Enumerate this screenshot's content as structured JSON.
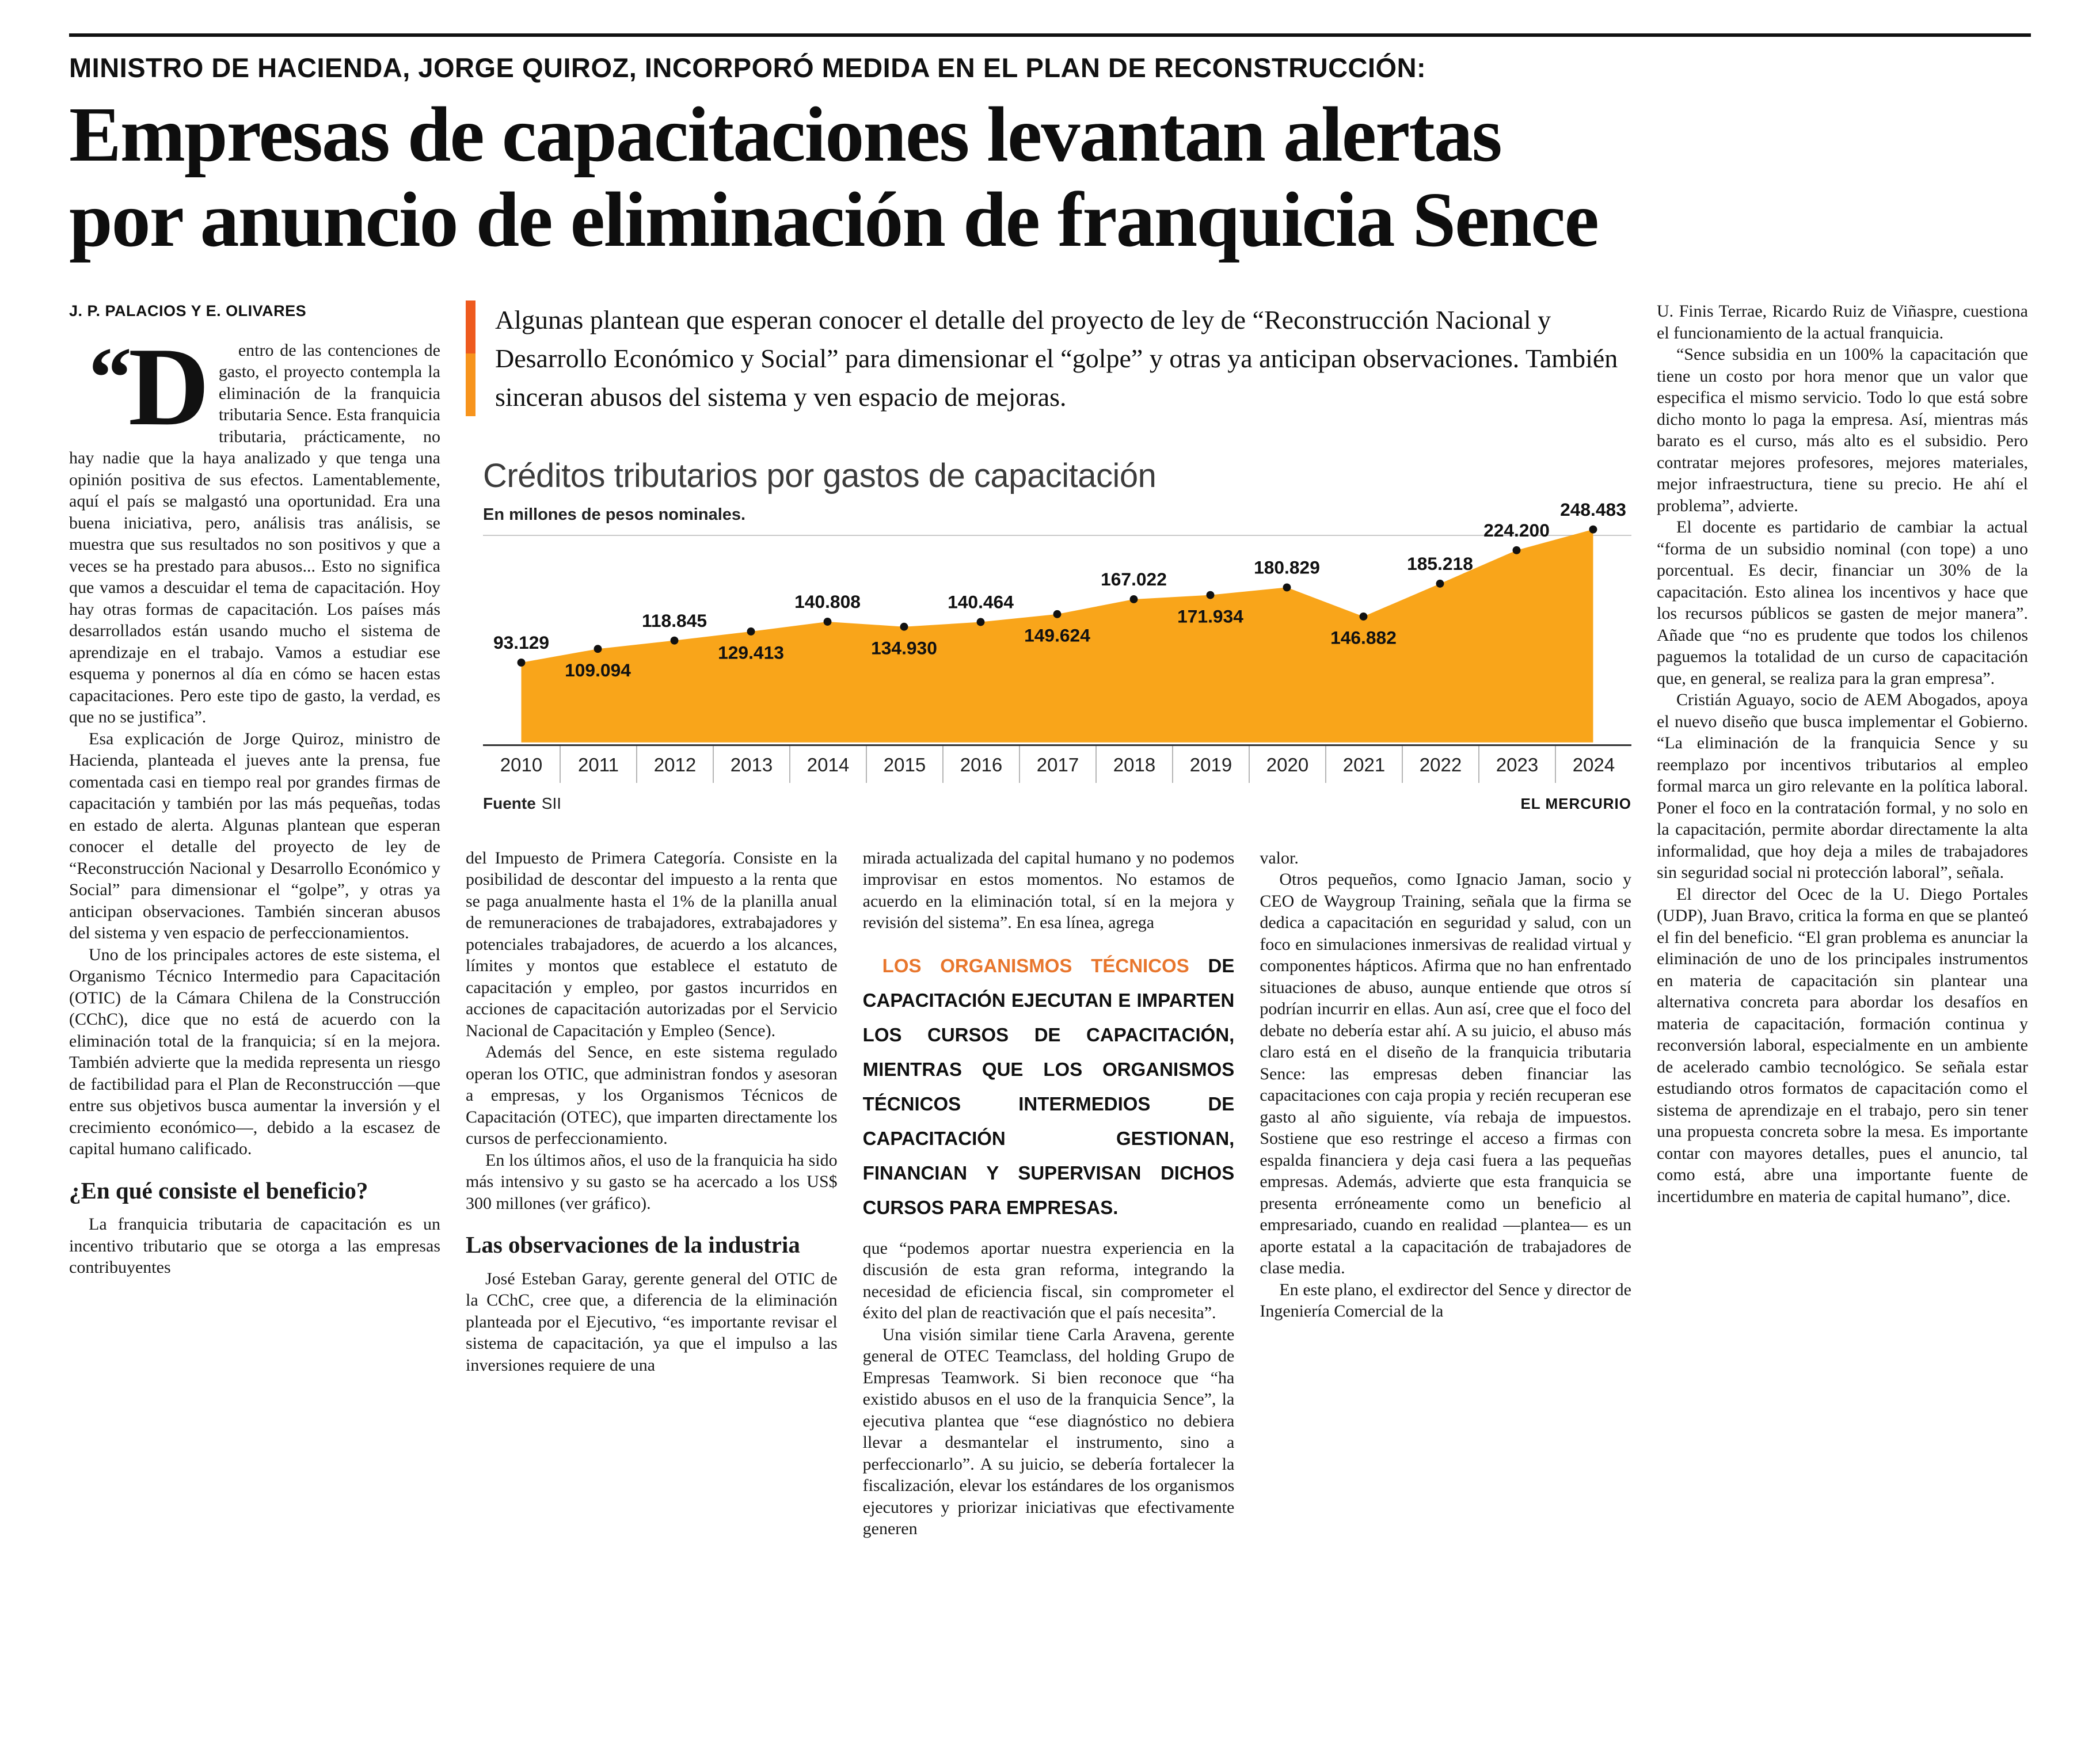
{
  "page": {
    "kicker": "MINISTRO DE HACIENDA, JORGE QUIROZ, INCORPORÓ MEDIDA EN EL PLAN DE RECONSTRUCCIÓN:",
    "headline_line1": "Empresas de capacitaciones levantan alertas",
    "headline_line2": "por anuncio de eliminación de franquicia Sence",
    "byline": "J. P. PALACIOS Y E. OLIVARES",
    "standfirst": "Algunas plantean que esperan conocer el detalle del proyecto de ley de “Reconstrucción Nacional y Desarrollo Económico y Social” para dimensionar el “golpe” y otras ya anticipan observaciones. También sinceran abusos del sistema y ven espacio de mejoras."
  },
  "colors": {
    "accent_orange": "#f7941d",
    "accent_orange_dark": "#ee5a1e",
    "pullquote_orange": "#e8762d",
    "chart_fill": "#f9a51a",
    "text": "#1a1a1a"
  },
  "article": {
    "col1": {
      "open_quote": "“",
      "dropcap": "D",
      "lead_text": "entro de las contenciones de gasto, el proyecto contempla la eliminación de la franquicia tributaria Sence. Esta franquicia tributaria, prácticamente, no hay nadie que la haya analizado y que tenga una opinión positiva de sus efectos. Lamentablemente, aquí el país se malgastó una oportunidad. Era una buena iniciativa, pero, análisis tras análisis, se muestra que sus resultados no son positivos y que a veces se ha prestado para abusos... Esto no significa que vamos a descuidar el tema de capacitación. Hoy hay otras formas de capacitación. Los países más desarrollados están usando mucho el sistema de aprendizaje en el trabajo. Vamos a estudiar ese esquema y ponernos al día en cómo se hacen estas capacitaciones. Pero este tipo de gasto, la verdad, es que no se justifica”.",
      "paragraphs": [
        "Esa explicación de Jorge Quiroz, ministro de Hacienda, planteada el jueves ante la prensa, fue comentada casi en tiempo real por grandes firmas de capacitación y también por las más pequeñas, todas en estado de alerta. Algunas plantean que esperan conocer el detalle del proyecto de ley de “Reconstrucción Nacional y Desarrollo Económico y Social” para dimensionar el “golpe”, y otras ya anticipan observaciones. También sinceran abusos del sistema y ven espacio de perfeccionamientos.",
        "Uno de los principales actores de este sistema, el Organismo Técnico Intermedio para Capacitación (OTIC) de la Cámara Chilena de la Construcción (CChC), dice que no está de acuerdo con la eliminación total de la franquicia; sí en la mejora. También advierte que la medida representa un riesgo de factibilidad para el Plan de Reconstrucción —que entre sus objetivos busca aumentar la inversión y el crecimiento económico—, debido a la escasez de capital humano calificado.",
        "La franquicia tributaria de capacitación es un incentivo tributario que se otorga a las empresas contribuyentes"
      ],
      "subhead": "¿En qué consiste el beneficio?"
    },
    "col2": {
      "paragraphs": [
        "del Impuesto de Primera Categoría. Consiste en la posibilidad de descontar del impuesto a la renta que se paga anualmente hasta el 1% de la planilla anual de remuneraciones de trabajadores, extrabajadores y potenciales trabajadores, de acuerdo a los alcances, límites y montos que establece el estatuto de capacitación y empleo, por gastos incurridos en acciones de capacitación autorizadas por el Servicio Nacional de Capacitación y Empleo (Sence).",
        "Además del Sence, en este sistema regulado operan los OTIC, que administran fondos y asesoran a empresas, y los Organismos Técnicos de Capacitación (OTEC), que imparten directamente los cursos de perfeccionamiento.",
        "En los últimos años, el uso de la franquicia ha sido más intensivo y su gasto se ha acercado a los US$ 300 millones (ver gráfico).",
        "José Esteban Garay, gerente general del OTIC de la CChC, cree que, a diferencia de la eliminación planteada por el Ejecutivo, “es importante revisar el sistema de capacitación, ya que el impulso a las inversiones requiere de una"
      ],
      "subhead": "Las observaciones de la industria"
    },
    "col3": {
      "paragraphs": [
        "mirada actualizada del capital humano y no podemos improvisar en estos momentos. No estamos de acuerdo en la eliminación total, sí en la mejora y revisión del sistema”. En esa línea, agrega",
        "que “podemos aportar nuestra experiencia en la discusión de esta gran reforma, integrando la necesidad de eficiencia fiscal, sin comprometer el éxito del plan de reactivación que el país necesita”.",
        "Una visión similar tiene Carla Aravena, gerente general de OTEC Teamclass, del holding Grupo de Empresas Teamwork. Si bien reconoce que “ha existido abusos en el uso de la franquicia Sence”, la ejecutiva plantea que “ese diagnóstico no debiera llevar a desmantelar el instrumento, sino a perfeccionarlo”. A su juicio, se debería fortalecer la fiscalización, elevar los estándares de los organismos ejecutores y priorizar iniciativas que efectivamente generen"
      ]
    },
    "col4": {
      "paragraphs": [
        "valor.",
        "Otros pequeños, como Ignacio Jaman, socio y CEO de Waygroup Training, señala que la firma se dedica a capacitación en seguridad y salud, con un foco en simulaciones inmersivas de realidad virtual y componentes hápticos. Afirma que no han enfrentado situaciones de abuso, aunque entiende que otros sí podrían incurrir en ellas. Aun así, cree que el foco del debate no debería estar ahí. A su juicio, el abuso más claro está en el diseño de la franquicia tributaria Sence: las empresas deben financiar las capacitaciones con caja propia y recién recuperan ese gasto al año siguiente, vía rebaja de impuestos. Sostiene que eso restringe el acceso a firmas con espalda financiera y deja casi fuera a las pequeñas empresas. Además, advierte que esta franquicia se presenta erróneamente como un beneficio al empresariado, cuando en realidad —plantea— es un aporte estatal a la capacitación de trabajadores de clase media.",
        "En este plano, el exdirector del Sence y director de Ingeniería Comercial de la"
      ]
    },
    "col5": {
      "paragraphs": [
        "U. Finis Terrae, Ricardo Ruiz de Viñaspre, cuestiona el funcionamiento de la actual franquicia.",
        "“Sence subsidia en un 100% la capacitación que tiene un costo por hora menor que un valor que especifica el mismo servicio. Todo lo que está sobre dicho monto lo paga la empresa. Así, mientras más barato es el curso, más alto es el subsidio. Pero contratar mejores profesores, mejores materiales, mejor infraestructura, tiene su precio. He ahí el problema”, advierte.",
        "El docente es partidario de cambiar la actual “forma de un subsidio nominal (con tope) a uno porcentual. Es decir, financiar un 30% de la capacitación. Esto alinea los incentivos y hace que los recursos públicos se gasten de mejor manera”. Añade que “no es prudente que todos los chilenos paguemos la totalidad de un curso de capacitación que, en general, se realiza para la gran empresa”.",
        "Cristián Aguayo, socio de AEM Abogados, apoya el nuevo diseño que busca implementar el Gobierno. “La eliminación de la franquicia Sence y su reemplazo por incentivos tributarios al empleo formal marca un giro relevante en la política laboral. Poner el foco en la contratación formal, y no solo en la capacitación, permite abordar directamente la alta informalidad, que hoy deja a miles de trabajadores sin seguridad social ni protección laboral”, señala.",
        "El director del Ocec de la U. Diego Portales (UDP), Juan Bravo, critica la forma en que se planteó el fin del beneficio. “El gran problema es anunciar la eliminación de uno de los principales instrumentos en materia de capacitación sin plantear una alternativa concreta para abordar los desafíos en materia de capacitación, formación continua y reconversión laboral, especialmente en un ambiente de acelerado cambio tecnológico. Se señala estar estudiando otros formatos de capacitación como el sistema de aprendizaje en el trabajo, pero sin tener una propuesta concreta sobre la mesa. Es importante contar con mayores detalles, pues el anuncio, tal como está, abre una importante fuente de incertidumbre en materia de capital humano”, dice."
      ]
    }
  },
  "pull_quote": {
    "lead": "LOS ORGANISMOS TÉCNICOS",
    "rest": " DE CAPACITACIÓN EJECUTAN E IMPARTEN LOS CURSOS DE CAPACITACIÓN, MIENTRAS QUE LOS ORGANISMOS TÉCNICOS INTERMEDIOS DE CAPACITACIÓN GESTIONAN, FINANCIAN Y SUPERVISAN DICHOS CURSOS PARA EMPRESAS."
  },
  "chart_data": {
    "type": "area",
    "title": "Créditos tributarios por gastos de capacitación",
    "subtitle": "En millones de pesos nominales.",
    "source_label": "Fuente",
    "source_value": "SII",
    "brand": "EL MERCURIO",
    "categories": [
      "2010",
      "2011",
      "2012",
      "2013",
      "2014",
      "2015",
      "2016",
      "2017",
      "2018",
      "2019",
      "2020",
      "2021",
      "2022",
      "2023",
      "2024"
    ],
    "values": [
      93129,
      109094,
      118845,
      129413,
      140808,
      134930,
      140464,
      149624,
      167022,
      171934,
      180829,
      146882,
      185218,
      224200,
      248483
    ],
    "value_labels": [
      "93.129",
      "109.094",
      "118.845",
      "129.413",
      "140.808",
      "134.930",
      "140.464",
      "149.624",
      "167.022",
      "171.934",
      "180.829",
      "146.882",
      "185.218",
      "224.200",
      "248.483"
    ],
    "label_positions": [
      "above",
      "below",
      "above",
      "below",
      "above",
      "below",
      "above",
      "below",
      "above",
      "below",
      "above",
      "below",
      "above",
      "above",
      "above"
    ],
    "xlabel": "",
    "ylabel": "Millones de pesos nominales",
    "ylim": [
      0,
      260000
    ],
    "grid": false,
    "legend": "none",
    "fill_color": "#f9a51a",
    "dot_color": "#111111"
  }
}
